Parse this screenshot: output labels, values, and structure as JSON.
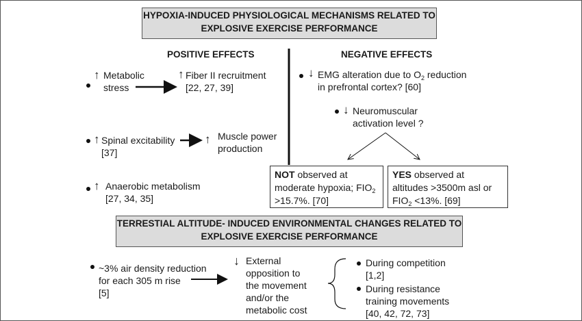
{
  "header_top": {
    "line1": "HYPOXIA-INDUCED PHYSIOLOGICAL MECHANISMS RELATED TO",
    "line2": "EXPLOSIVE EXERCISE PERFORMANCE"
  },
  "positive": {
    "heading": "POSITIVE EFFECTS",
    "metabolic_stress": {
      "arrow": "↑",
      "line1": "Metabolic",
      "line2": "stress"
    },
    "fiber": {
      "arrow": "↑",
      "line1": "Fiber II recruitment",
      "line2": "[22, 27, 39]"
    },
    "spinal": {
      "arrow": "↑",
      "line1": "Spinal excitability",
      "line2": "[37]"
    },
    "muscle": {
      "arrow": "↑",
      "line1": "Muscle power",
      "line2": "production"
    },
    "anaerobic": {
      "arrow": "↑",
      "line1": "Anaerobic metabolism",
      "line2": "[27, 34, 35]"
    }
  },
  "negative": {
    "heading": "NEGATIVE EFFECTS",
    "emg": {
      "arrow": "↓",
      "line1_pre": "EMG alteration due to  O",
      "line1_sub": "2",
      "line1_post": "  reduction",
      "line2": "in prefrontal cortex? [60]"
    },
    "neuro": {
      "arrow": "↓",
      "line1": "Neuromuscular",
      "line2": "activation level ?"
    },
    "not_box": {
      "bold": "NOT",
      "line1_rest": " observed at",
      "line2_pre": "moderate hypoxia; FIO",
      "line2_sub": "2",
      "line3": ">15.7%.  [70]"
    },
    "yes_box": {
      "bold": "YES",
      "line1_rest": " observed at",
      "line2": "altitudes >3500m asl or",
      "line3_pre": "FIO",
      "line3_sub": "2",
      "line3_post": " <13%. [69]"
    }
  },
  "header_bottom": {
    "line1": "TERRESTIAL ALTITUDE- INDUCED ENVIRONMENTAL CHANGES  RELATED TO",
    "line2": "EXPLOSIVE EXERCISE PERFORMANCE"
  },
  "environment": {
    "air": {
      "line1": "~3% air density reduction",
      "line2": "for each 305 m rise",
      "line3": "[5]"
    },
    "arrow": "↓",
    "opposition": [
      "External",
      "opposition to",
      "the movement",
      "and/or  the",
      "metabolic cost"
    ],
    "competition": {
      "line1": "During competition",
      "line2": "[1,2]"
    },
    "resistance": {
      "line1": "During resistance",
      "line2": "training movements",
      "line3": "[40, 42, 72, 73]"
    }
  }
}
